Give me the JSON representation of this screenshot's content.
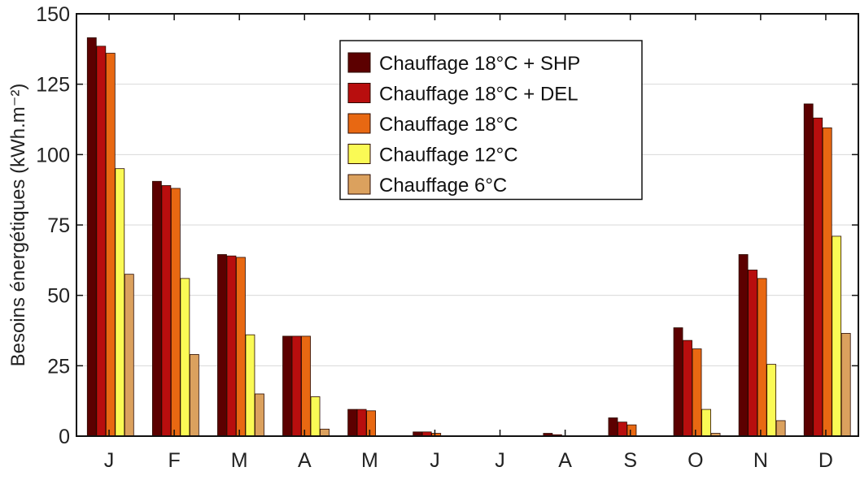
{
  "chart_data": {
    "type": "bar",
    "title": "",
    "xlabel": "",
    "ylabel": "Besoins énergétiques (kWh.m⁻²)",
    "ylim": [
      0,
      150
    ],
    "yticks": [
      0,
      25,
      50,
      75,
      100,
      125,
      150
    ],
    "grid": "horizontal",
    "legend_position": "top-center",
    "categories": [
      "J",
      "F",
      "M",
      "A",
      "M",
      "J",
      "J",
      "A",
      "S",
      "O",
      "N",
      "D"
    ],
    "series": [
      {
        "name": "Chauffage 18°C + SHP",
        "color": "#5c0000",
        "values": [
          141.5,
          90.5,
          64.5,
          35.5,
          9.5,
          1.5,
          0,
          1,
          6.5,
          38.5,
          64.5,
          118
        ]
      },
      {
        "name": "Chauffage 18°C + DEL",
        "color": "#b80e0e",
        "values": [
          138.5,
          89,
          64,
          35.5,
          9.5,
          1.5,
          0,
          0.5,
          5,
          34,
          59,
          113
        ]
      },
      {
        "name": "Chauffage 18°C",
        "color": "#e86812",
        "values": [
          136,
          88,
          63.5,
          35.5,
          9,
          1,
          0,
          0,
          4,
          31,
          56,
          109.5
        ]
      },
      {
        "name": "Chauffage 12°C",
        "color": "#fafa55",
        "values": [
          95,
          56,
          36,
          14,
          0,
          0,
          0,
          0,
          0,
          9.5,
          25.5,
          71
        ]
      },
      {
        "name": "Chauffage 6°C",
        "color": "#dba15e",
        "values": [
          57.5,
          29,
          15,
          2.5,
          0,
          0,
          0,
          0,
          0,
          1,
          5.5,
          36.5
        ]
      }
    ]
  }
}
